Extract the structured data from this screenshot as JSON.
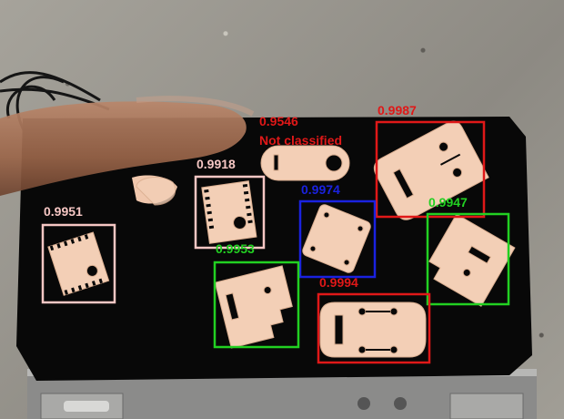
{
  "colors": {
    "pink": "#f6c7c4",
    "red": "#e01818",
    "blue": "#1a22e0",
    "green": "#22d022",
    "part": "#f3cfb6",
    "part_shadow": "#d9ad8f",
    "cloth": "#080808"
  },
  "detections": [
    {
      "id": "d1",
      "score": "0.9951",
      "color": "#f6c7c4"
    },
    {
      "id": "d2",
      "score": "0.9918",
      "color": "#f6c7c4"
    },
    {
      "id": "d3",
      "score": "0.9546",
      "status": "Not classified",
      "color": "#e01818"
    },
    {
      "id": "d4",
      "score": "0.9987",
      "color": "#e01818"
    },
    {
      "id": "d5",
      "score": "0.9974",
      "color": "#1a22e0"
    },
    {
      "id": "d6",
      "score": "0.9953",
      "color": "#22d022"
    },
    {
      "id": "d7",
      "score": "0.9947",
      "color": "#22d022"
    },
    {
      "id": "d8",
      "score": "0.9994",
      "color": "#e01818"
    }
  ]
}
